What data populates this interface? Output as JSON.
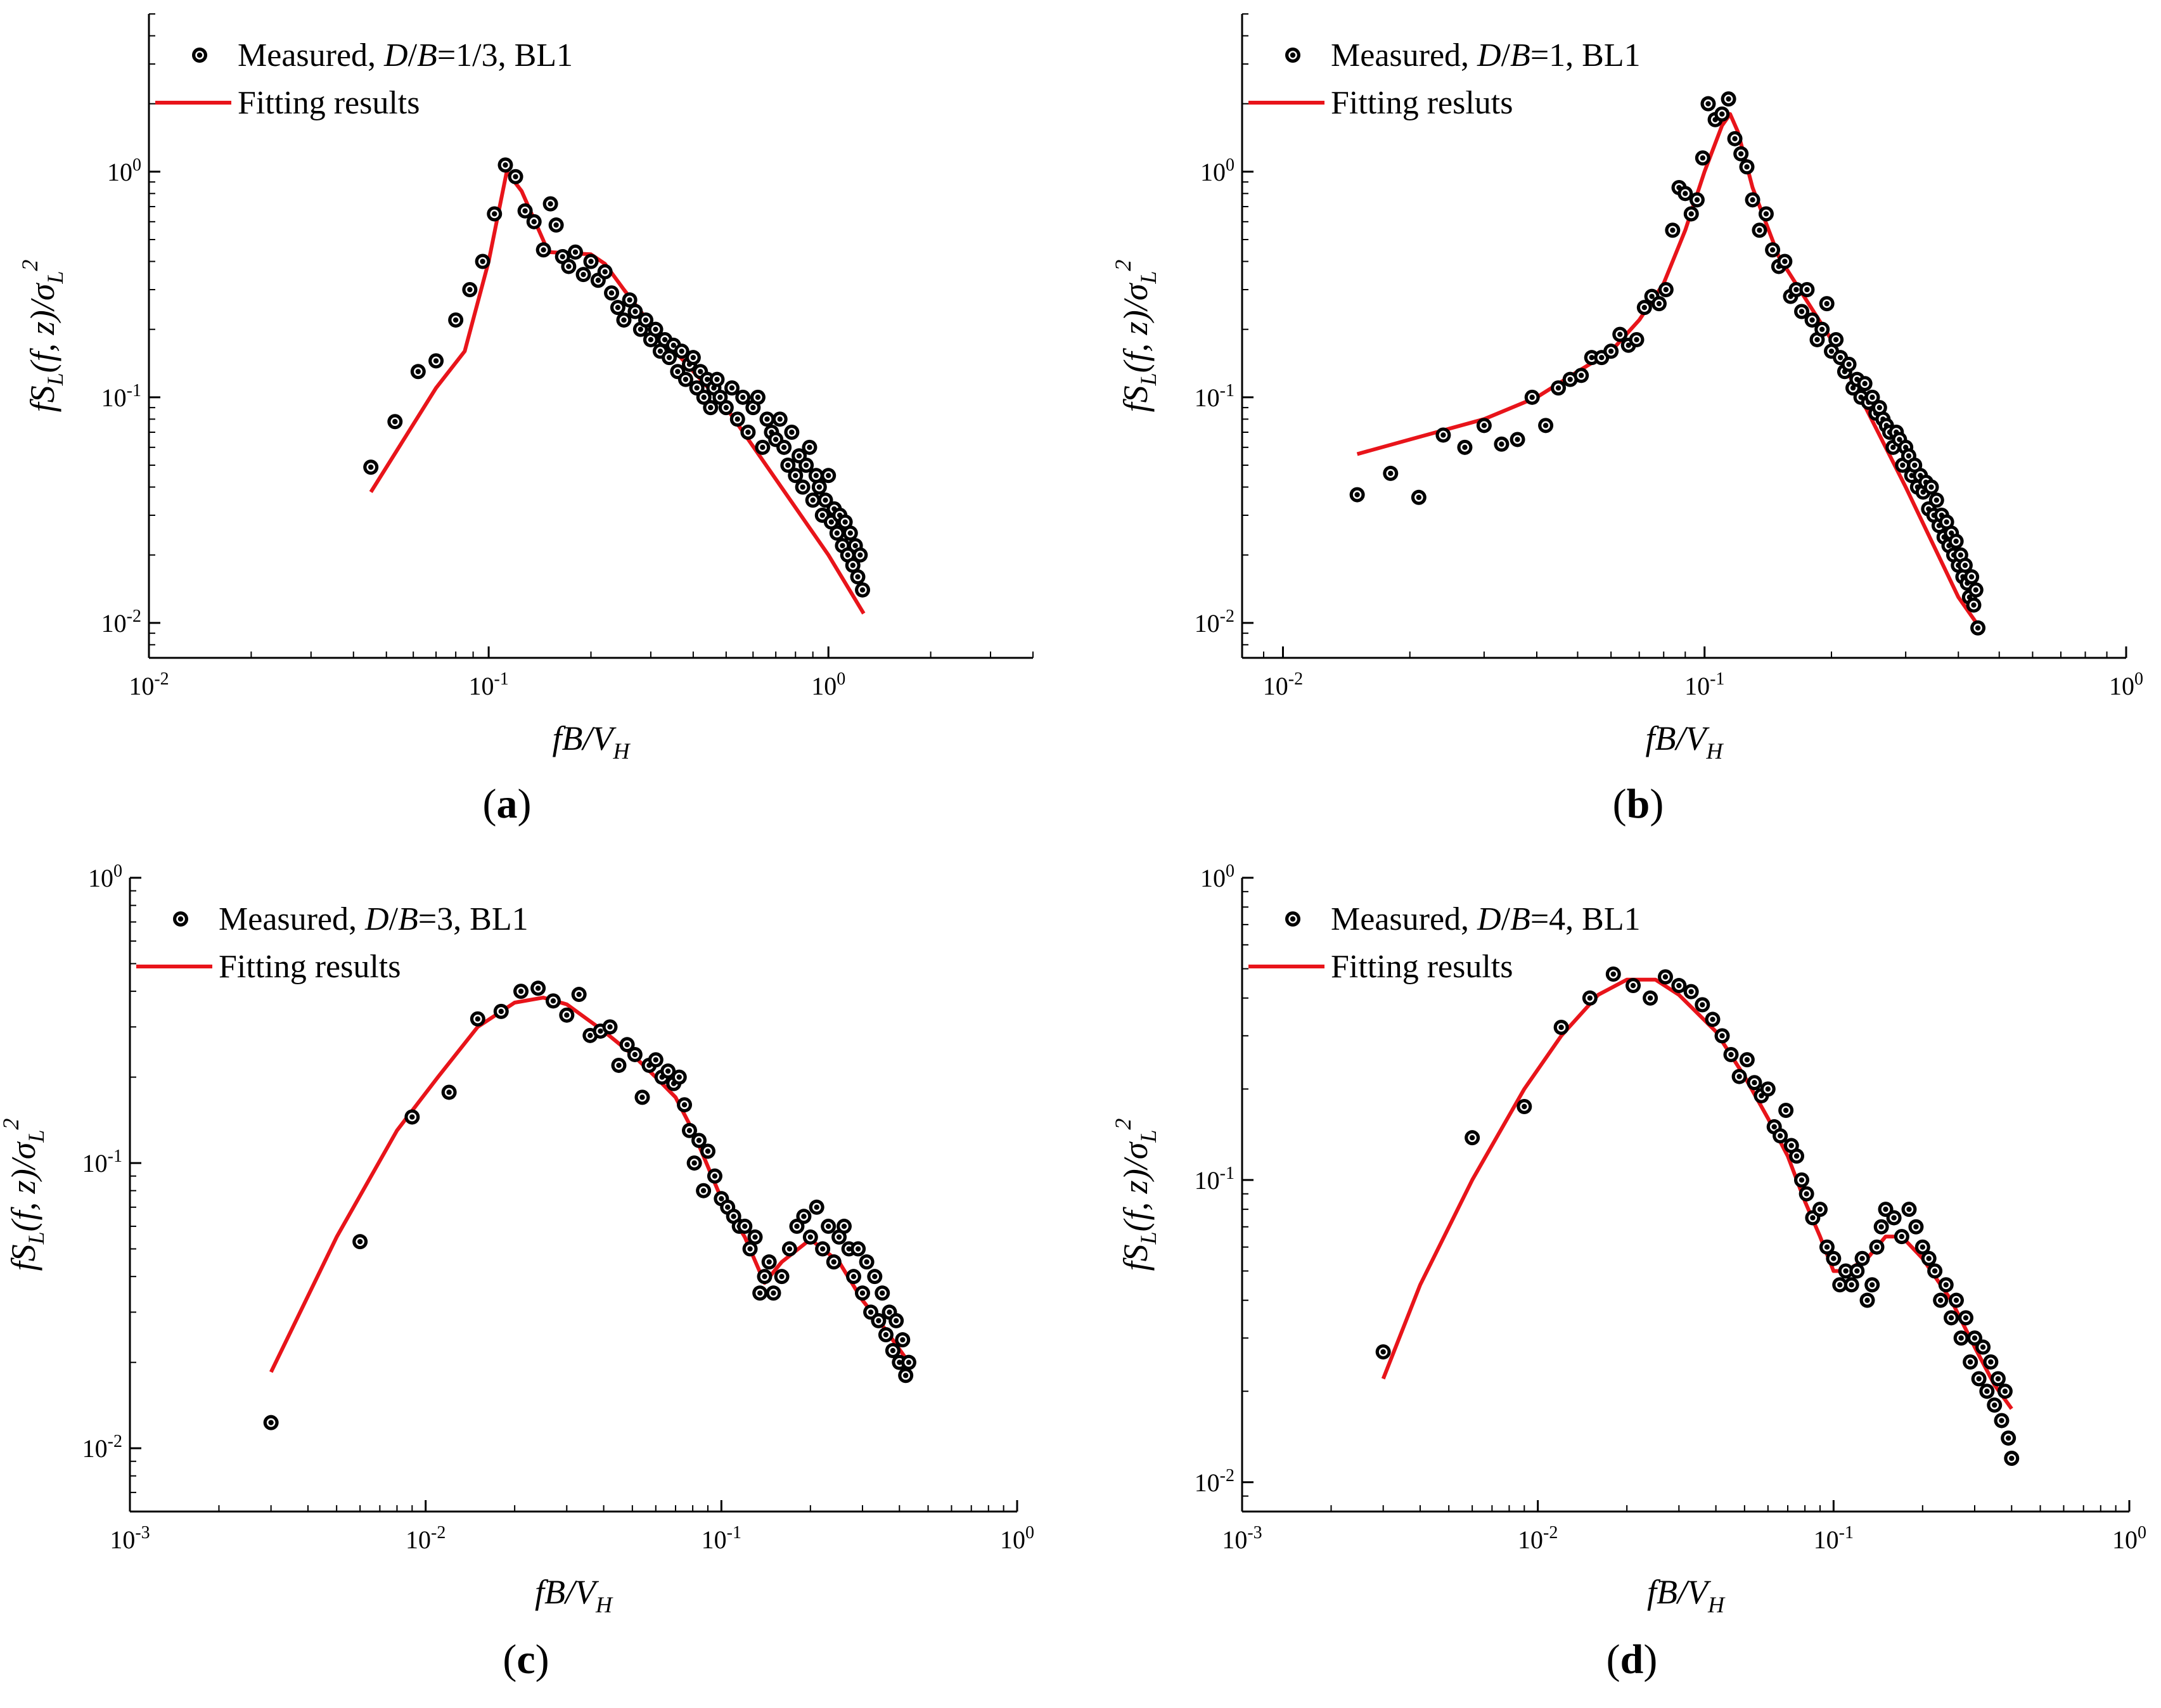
{
  "chart_data": [
    {
      "type": "scatter",
      "panel_label": "a",
      "scale": "log-log",
      "xlim": [
        0.01,
        4
      ],
      "ylim": [
        0.007,
        5
      ],
      "xticks": [
        {
          "v": 0.01,
          "label": "10"
        },
        {
          "v": 0.1,
          "label": "10"
        },
        {
          "v": 1,
          "label": "10"
        }
      ],
      "xtick_exps": [
        "-2",
        "-1",
        "0"
      ],
      "yticks": [
        {
          "v": 0.01,
          "label": "10"
        },
        {
          "v": 0.1,
          "label": "10"
        },
        {
          "v": 1,
          "label": "10"
        }
      ],
      "ytick_exps": [
        "-2",
        "-1",
        "0"
      ],
      "xlabel": "fB/V_H",
      "ylabel": "fS_L(f, z)/σ_L^2",
      "legend": {
        "measured": "Measured, D/B=1/3, BL1",
        "fit": "Fitting results",
        "position": "top-left"
      },
      "series": [
        {
          "name": "Measured",
          "kind": "markers",
          "x": [
            0.045,
            0.053,
            0.062,
            0.07,
            0.08,
            0.088,
            0.096,
            0.104,
            0.112,
            0.12,
            0.128,
            0.136,
            0.145,
            0.152,
            0.158,
            0.165,
            0.172,
            0.18,
            0.19,
            0.2,
            0.21,
            0.22,
            0.23,
            0.24,
            0.25,
            0.26,
            0.27,
            0.28,
            0.29,
            0.3,
            0.31,
            0.32,
            0.33,
            0.34,
            0.35,
            0.36,
            0.37,
            0.38,
            0.39,
            0.4,
            0.41,
            0.42,
            0.43,
            0.44,
            0.45,
            0.46,
            0.47,
            0.48,
            0.5,
            0.52,
            0.54,
            0.56,
            0.58,
            0.6,
            0.62,
            0.64,
            0.66,
            0.68,
            0.7,
            0.72,
            0.74,
            0.76,
            0.78,
            0.8,
            0.82,
            0.84,
            0.86,
            0.88,
            0.9,
            0.92,
            0.94,
            0.96,
            0.98,
            1.0,
            1.02,
            1.04,
            1.06,
            1.08,
            1.1,
            1.12,
            1.14,
            1.16,
            1.18,
            1.2,
            1.22,
            1.24,
            1.26
          ],
          "y": [
            0.049,
            0.078,
            0.13,
            0.145,
            0.22,
            0.3,
            0.4,
            0.65,
            1.07,
            0.95,
            0.67,
            0.6,
            0.45,
            0.72,
            0.58,
            0.42,
            0.38,
            0.44,
            0.35,
            0.4,
            0.33,
            0.36,
            0.29,
            0.25,
            0.22,
            0.27,
            0.24,
            0.2,
            0.22,
            0.18,
            0.2,
            0.16,
            0.18,
            0.15,
            0.17,
            0.13,
            0.16,
            0.12,
            0.14,
            0.15,
            0.11,
            0.13,
            0.1,
            0.12,
            0.09,
            0.11,
            0.12,
            0.1,
            0.09,
            0.11,
            0.08,
            0.1,
            0.07,
            0.09,
            0.1,
            0.06,
            0.08,
            0.07,
            0.065,
            0.08,
            0.06,
            0.05,
            0.07,
            0.045,
            0.055,
            0.04,
            0.05,
            0.06,
            0.035,
            0.045,
            0.04,
            0.03,
            0.035,
            0.045,
            0.028,
            0.032,
            0.025,
            0.03,
            0.022,
            0.028,
            0.02,
            0.025,
            0.018,
            0.022,
            0.016,
            0.02,
            0.014
          ]
        },
        {
          "name": "Fitting results",
          "kind": "line",
          "x": [
            0.045,
            0.07,
            0.085,
            0.1,
            0.113,
            0.125,
            0.15,
            0.2,
            0.22,
            0.25,
            0.3,
            0.5,
            1.0,
            1.27
          ],
          "y": [
            0.038,
            0.11,
            0.16,
            0.4,
            1.0,
            0.82,
            0.44,
            0.43,
            0.39,
            0.3,
            0.21,
            0.09,
            0.02,
            0.011
          ]
        }
      ]
    },
    {
      "type": "scatter",
      "panel_label": "b",
      "scale": "log-log",
      "xlim": [
        0.008,
        1
      ],
      "ylim": [
        0.007,
        5
      ],
      "xticks": [
        {
          "v": 0.01,
          "label": "10"
        },
        {
          "v": 0.1,
          "label": "10"
        },
        {
          "v": 1,
          "label": "10"
        }
      ],
      "xtick_exps": [
        "-2",
        "-1",
        "0"
      ],
      "yticks": [
        {
          "v": 0.01,
          "label": "10"
        },
        {
          "v": 0.1,
          "label": "10"
        },
        {
          "v": 1,
          "label": "10"
        }
      ],
      "ytick_exps": [
        "-2",
        "-1",
        "0"
      ],
      "xlabel": "fB/V_H",
      "ylabel": "fS_L(f, z)/σ_L^2",
      "legend": {
        "measured": "Measured, D/B=1, BL1",
        "fit": "Fitting resluts",
        "position": "top-left"
      },
      "series": [
        {
          "name": "Measured",
          "kind": "markers",
          "x": [
            0.015,
            0.018,
            0.021,
            0.024,
            0.027,
            0.03,
            0.033,
            0.036,
            0.039,
            0.042,
            0.045,
            0.048,
            0.051,
            0.054,
            0.057,
            0.06,
            0.063,
            0.066,
            0.069,
            0.072,
            0.075,
            0.078,
            0.081,
            0.084,
            0.087,
            0.09,
            0.093,
            0.096,
            0.099,
            0.102,
            0.106,
            0.11,
            0.114,
            0.118,
            0.122,
            0.126,
            0.13,
            0.135,
            0.14,
            0.145,
            0.15,
            0.155,
            0.16,
            0.165,
            0.17,
            0.175,
            0.18,
            0.185,
            0.19,
            0.195,
            0.2,
            0.205,
            0.21,
            0.215,
            0.22,
            0.225,
            0.23,
            0.235,
            0.24,
            0.245,
            0.25,
            0.255,
            0.26,
            0.265,
            0.27,
            0.275,
            0.28,
            0.285,
            0.29,
            0.295,
            0.3,
            0.305,
            0.31,
            0.315,
            0.32,
            0.325,
            0.33,
            0.335,
            0.34,
            0.345,
            0.35,
            0.355,
            0.36,
            0.365,
            0.37,
            0.375,
            0.38,
            0.385,
            0.39,
            0.395,
            0.4,
            0.405,
            0.41,
            0.415,
            0.42,
            0.425,
            0.43,
            0.435,
            0.44,
            0.445
          ],
          "y": [
            0.037,
            0.046,
            0.036,
            0.068,
            0.06,
            0.075,
            0.062,
            0.065,
            0.1,
            0.075,
            0.11,
            0.12,
            0.125,
            0.15,
            0.15,
            0.16,
            0.19,
            0.17,
            0.18,
            0.25,
            0.28,
            0.26,
            0.3,
            0.55,
            0.85,
            0.8,
            0.65,
            0.75,
            1.15,
            2.0,
            1.7,
            1.8,
            2.1,
            1.4,
            1.2,
            1.05,
            0.75,
            0.55,
            0.65,
            0.45,
            0.38,
            0.4,
            0.28,
            0.3,
            0.24,
            0.3,
            0.22,
            0.18,
            0.2,
            0.26,
            0.16,
            0.18,
            0.15,
            0.13,
            0.14,
            0.11,
            0.12,
            0.1,
            0.115,
            0.095,
            0.1,
            0.085,
            0.09,
            0.08,
            0.075,
            0.07,
            0.06,
            0.07,
            0.065,
            0.05,
            0.06,
            0.055,
            0.045,
            0.05,
            0.04,
            0.045,
            0.038,
            0.042,
            0.032,
            0.04,
            0.03,
            0.035,
            0.027,
            0.03,
            0.024,
            0.028,
            0.022,
            0.025,
            0.02,
            0.023,
            0.018,
            0.02,
            0.016,
            0.018,
            0.015,
            0.013,
            0.016,
            0.012,
            0.014,
            0.0095
          ]
        },
        {
          "name": "Fitting results",
          "kind": "line",
          "x": [
            0.015,
            0.02,
            0.03,
            0.04,
            0.05,
            0.06,
            0.07,
            0.08,
            0.09,
            0.1,
            0.11,
            0.115,
            0.12,
            0.13,
            0.15,
            0.2,
            0.3,
            0.4,
            0.45
          ],
          "y": [
            0.056,
            0.065,
            0.08,
            0.1,
            0.13,
            0.16,
            0.22,
            0.32,
            0.55,
            1.0,
            1.6,
            1.8,
            1.5,
            0.85,
            0.42,
            0.18,
            0.04,
            0.013,
            0.0095
          ]
        }
      ]
    },
    {
      "type": "scatter",
      "panel_label": "c",
      "scale": "log-log",
      "xlim": [
        0.001,
        1
      ],
      "ylim": [
        0.006,
        1
      ],
      "xticks": [
        {
          "v": 0.001,
          "label": "10"
        },
        {
          "v": 0.01,
          "label": "10"
        },
        {
          "v": 0.1,
          "label": "10"
        },
        {
          "v": 1,
          "label": "10"
        }
      ],
      "xtick_exps": [
        "-3",
        "-2",
        "-1",
        "0"
      ],
      "yticks": [
        {
          "v": 0.01,
          "label": "10"
        },
        {
          "v": 0.1,
          "label": "10"
        },
        {
          "v": 1,
          "label": "10"
        }
      ],
      "ytick_exps": [
        "-2",
        "-1",
        "0"
      ],
      "xlabel": "fB/V_H",
      "ylabel": "fS_L(f, z)/σ_L^2",
      "legend": {
        "measured": "Measured, D/B=3, BL1",
        "fit": "Fitting results",
        "position": "top-left"
      },
      "series": [
        {
          "name": "Measured",
          "kind": "markers",
          "x": [
            0.003,
            0.006,
            0.009,
            0.012,
            0.015,
            0.018,
            0.021,
            0.024,
            0.027,
            0.03,
            0.033,
            0.036,
            0.039,
            0.042,
            0.045,
            0.048,
            0.051,
            0.054,
            0.057,
            0.06,
            0.063,
            0.066,
            0.069,
            0.072,
            0.075,
            0.078,
            0.081,
            0.084,
            0.087,
            0.09,
            0.095,
            0.1,
            0.105,
            0.11,
            0.115,
            0.12,
            0.125,
            0.13,
            0.135,
            0.14,
            0.145,
            0.15,
            0.16,
            0.17,
            0.18,
            0.19,
            0.2,
            0.21,
            0.22,
            0.23,
            0.24,
            0.25,
            0.26,
            0.27,
            0.28,
            0.29,
            0.3,
            0.31,
            0.32,
            0.33,
            0.34,
            0.35,
            0.36,
            0.37,
            0.38,
            0.39,
            0.4,
            0.41,
            0.42,
            0.43
          ],
          "y": [
            0.0123,
            0.053,
            0.145,
            0.177,
            0.32,
            0.34,
            0.4,
            0.41,
            0.37,
            0.33,
            0.39,
            0.28,
            0.29,
            0.3,
            0.22,
            0.26,
            0.24,
            0.17,
            0.22,
            0.23,
            0.2,
            0.21,
            0.19,
            0.2,
            0.16,
            0.13,
            0.1,
            0.12,
            0.08,
            0.11,
            0.09,
            0.075,
            0.07,
            0.065,
            0.06,
            0.06,
            0.05,
            0.055,
            0.035,
            0.04,
            0.045,
            0.035,
            0.04,
            0.05,
            0.06,
            0.065,
            0.055,
            0.07,
            0.05,
            0.06,
            0.045,
            0.055,
            0.06,
            0.05,
            0.04,
            0.05,
            0.035,
            0.045,
            0.03,
            0.04,
            0.028,
            0.035,
            0.025,
            0.03,
            0.022,
            0.028,
            0.02,
            0.024,
            0.018,
            0.02
          ]
        },
        {
          "name": "Fitting results",
          "kind": "line",
          "x": [
            0.003,
            0.005,
            0.008,
            0.011,
            0.015,
            0.02,
            0.025,
            0.03,
            0.04,
            0.05,
            0.06,
            0.07,
            0.08,
            0.1,
            0.12,
            0.14,
            0.16,
            0.2,
            0.25,
            0.3,
            0.35,
            0.43
          ],
          "y": [
            0.0185,
            0.055,
            0.13,
            0.2,
            0.3,
            0.365,
            0.38,
            0.36,
            0.29,
            0.24,
            0.2,
            0.17,
            0.13,
            0.075,
            0.055,
            0.038,
            0.045,
            0.054,
            0.045,
            0.033,
            0.027,
            0.02
          ]
        }
      ]
    },
    {
      "type": "scatter",
      "panel_label": "d",
      "scale": "log-log",
      "xlim": [
        0.001,
        1
      ],
      "ylim": [
        0.008,
        1
      ],
      "xticks": [
        {
          "v": 0.001,
          "label": "10"
        },
        {
          "v": 0.01,
          "label": "10"
        },
        {
          "v": 0.1,
          "label": "10"
        },
        {
          "v": 1,
          "label": "10"
        }
      ],
      "xtick_exps": [
        "-3",
        "-2",
        "-1",
        "0"
      ],
      "yticks": [
        {
          "v": 0.01,
          "label": "10"
        },
        {
          "v": 0.1,
          "label": "10"
        },
        {
          "v": 1,
          "label": "10"
        }
      ],
      "ytick_exps": [
        "-2",
        "-1",
        "0"
      ],
      "xlabel": "fB/V_H",
      "ylabel": "fS_L(f, z)/σ_L^2",
      "legend": {
        "measured": "Measured, D/B=4, BL1",
        "fit": "Fitting results",
        "position": "top-left"
      },
      "series": [
        {
          "name": "Measured",
          "kind": "markers",
          "x": [
            0.003,
            0.006,
            0.009,
            0.012,
            0.015,
            0.018,
            0.021,
            0.024,
            0.027,
            0.03,
            0.033,
            0.036,
            0.039,
            0.042,
            0.045,
            0.048,
            0.051,
            0.054,
            0.057,
            0.06,
            0.063,
            0.066,
            0.069,
            0.072,
            0.075,
            0.078,
            0.081,
            0.085,
            0.09,
            0.095,
            0.1,
            0.105,
            0.11,
            0.115,
            0.12,
            0.125,
            0.13,
            0.135,
            0.14,
            0.145,
            0.15,
            0.16,
            0.17,
            0.18,
            0.19,
            0.2,
            0.21,
            0.22,
            0.23,
            0.24,
            0.25,
            0.26,
            0.27,
            0.28,
            0.29,
            0.3,
            0.31,
            0.32,
            0.33,
            0.34,
            0.35,
            0.36,
            0.37,
            0.38,
            0.39,
            0.4
          ],
          "y": [
            0.027,
            0.138,
            0.175,
            0.32,
            0.4,
            0.48,
            0.44,
            0.4,
            0.47,
            0.44,
            0.42,
            0.38,
            0.34,
            0.3,
            0.26,
            0.22,
            0.25,
            0.21,
            0.19,
            0.2,
            0.15,
            0.14,
            0.17,
            0.13,
            0.12,
            0.1,
            0.09,
            0.075,
            0.08,
            0.06,
            0.055,
            0.045,
            0.05,
            0.045,
            0.05,
            0.055,
            0.04,
            0.045,
            0.06,
            0.07,
            0.08,
            0.075,
            0.065,
            0.08,
            0.07,
            0.06,
            0.055,
            0.05,
            0.04,
            0.045,
            0.035,
            0.04,
            0.03,
            0.035,
            0.025,
            0.03,
            0.022,
            0.028,
            0.02,
            0.025,
            0.018,
            0.022,
            0.016,
            0.02,
            0.014,
            0.012
          ]
        },
        {
          "name": "Fitting results",
          "kind": "line",
          "x": [
            0.003,
            0.004,
            0.006,
            0.009,
            0.012,
            0.016,
            0.02,
            0.025,
            0.03,
            0.04,
            0.05,
            0.06,
            0.07,
            0.08,
            0.09,
            0.1,
            0.11,
            0.13,
            0.15,
            0.17,
            0.2,
            0.25,
            0.3,
            0.35,
            0.4
          ],
          "y": [
            0.022,
            0.045,
            0.1,
            0.2,
            0.3,
            0.41,
            0.46,
            0.46,
            0.41,
            0.31,
            0.22,
            0.16,
            0.12,
            0.085,
            0.065,
            0.05,
            0.05,
            0.055,
            0.065,
            0.065,
            0.055,
            0.04,
            0.028,
            0.021,
            0.0175
          ]
        }
      ]
    }
  ]
}
